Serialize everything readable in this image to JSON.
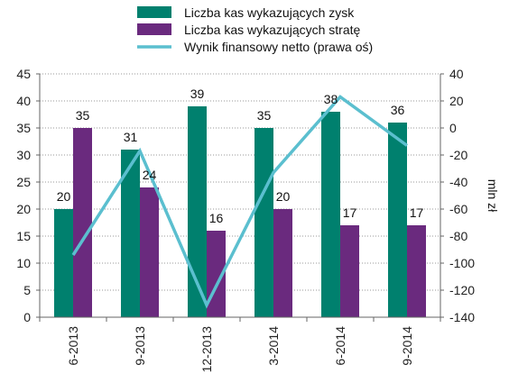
{
  "chart_data": {
    "type": "bar",
    "categories": [
      "6-2013",
      "9-2013",
      "12-2013",
      "3-2014",
      "6-2014",
      "9-2014"
    ],
    "series": [
      {
        "name": "Liczba kas wykazujących zysk",
        "type": "bar",
        "axis": "left",
        "color": "#00806e",
        "values": [
          20,
          31,
          39,
          35,
          38,
          36
        ]
      },
      {
        "name": "Liczba kas wykazujących stratę",
        "type": "bar",
        "axis": "left",
        "color": "#6a2a7e",
        "values": [
          35,
          24,
          16,
          20,
          17,
          17
        ]
      },
      {
        "name": "Wynik finansowy netto (prawa oś)",
        "type": "line",
        "axis": "right",
        "color": "#5bbfcf",
        "values": [
          -94,
          -17,
          -131,
          -33,
          23,
          -13
        ]
      }
    ],
    "ylim": [
      0,
      45
    ],
    "y_ticks": [
      "0",
      "5",
      "10",
      "15",
      "20",
      "25",
      "30",
      "35",
      "40",
      "45"
    ],
    "y2lim": [
      -140,
      40
    ],
    "y2_ticks": [
      "-140",
      "-120",
      "-100",
      "-80",
      "-60",
      "-40",
      "-20",
      "0",
      "20",
      "40"
    ],
    "y2label": "mln zł",
    "grid": true,
    "legend_position": "top"
  }
}
